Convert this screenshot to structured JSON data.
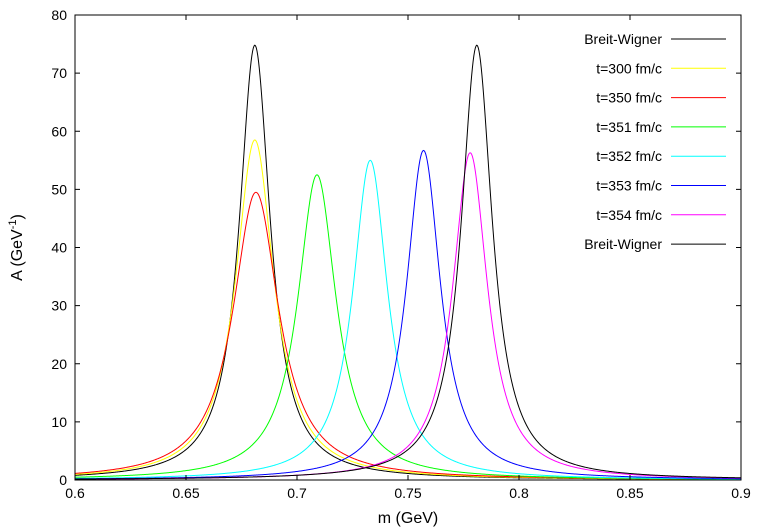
{
  "chart_data": {
    "type": "line",
    "xlabel": "m (GeV)",
    "ylabel": "A (GeV",
    "ylabel_sup": "-1",
    "ylabel_end": ")",
    "xlim": [
      0.6,
      0.9
    ],
    "ylim": [
      0,
      80
    ],
    "xticks": [
      "0.6",
      "0.65",
      "0.7",
      "0.75",
      "0.8",
      "0.85",
      "0.9"
    ],
    "yticks": [
      "0",
      "10",
      "20",
      "30",
      "40",
      "50",
      "60",
      "70",
      "80"
    ],
    "grid": false,
    "legend_position": "top-right",
    "series": [
      {
        "name": "Breit-Wigner",
        "color": "#000000",
        "shape": "bw",
        "center": 0.681,
        "peak": 74.8,
        "gamma": 0.0085
      },
      {
        "name": "t=300 fm/c",
        "color": "#ffff00",
        "shape": "bw",
        "center": 0.681,
        "peak": 58.5,
        "gamma": 0.0105
      },
      {
        "name": "t=350 fm/c",
        "color": "#ff0000",
        "shape": "bw",
        "center": 0.6815,
        "peak": 49.5,
        "gamma": 0.0125
      },
      {
        "name": "t=351 fm/c",
        "color": "#00ff00",
        "shape": "bw",
        "center": 0.709,
        "peak": 52.5,
        "gamma": 0.0105
      },
      {
        "name": "t=352 fm/c",
        "color": "#00ffff",
        "shape": "bw",
        "center": 0.733,
        "peak": 55.0,
        "gamma": 0.0095
      },
      {
        "name": "t=353 fm/c",
        "color": "#0000ff",
        "shape": "bw",
        "center": 0.757,
        "peak": 56.7,
        "gamma": 0.0093
      },
      {
        "name": "t=354 fm/c",
        "color": "#ff00ff",
        "shape": "bw",
        "center": 0.778,
        "peak": 56.3,
        "gamma": 0.0095
      },
      {
        "name": "Breit-Wigner",
        "color": "#000000",
        "shape": "bw",
        "center": 0.781,
        "peak": 74.8,
        "gamma": 0.0085
      }
    ]
  }
}
